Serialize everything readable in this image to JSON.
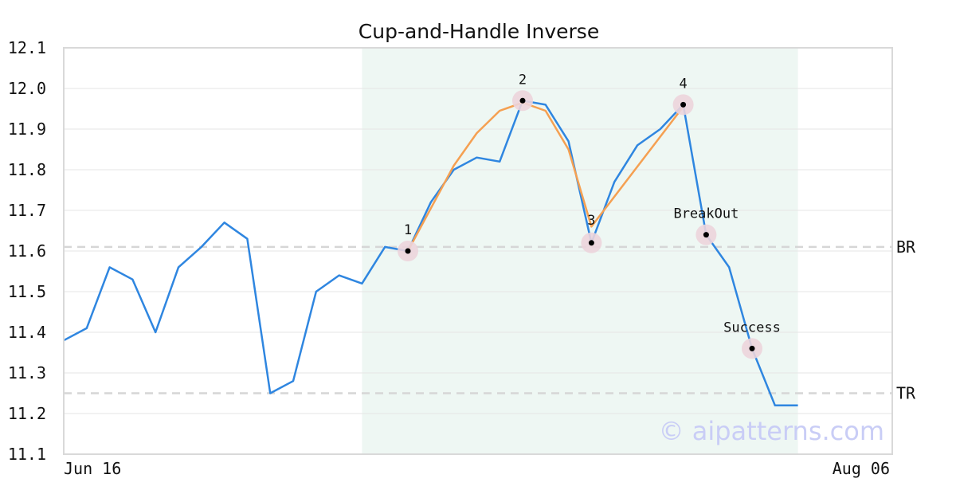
{
  "chart_data": {
    "type": "line",
    "title": "Cup-and-Handle Inverse",
    "xlabel": "",
    "ylabel": "",
    "ylim": [
      11.1,
      12.1
    ],
    "yticks": [
      "12.1",
      "12.0",
      "11.9",
      "11.8",
      "11.7",
      "11.6",
      "11.5",
      "11.4",
      "11.3",
      "11.2",
      "11.1"
    ],
    "xtick_labels": [
      "Jun 16",
      "Aug 06"
    ],
    "grid": true,
    "series": [
      {
        "name": "",
        "color": "#2f86e0",
        "values": [
          11.38,
          11.41,
          11.56,
          11.53,
          11.4,
          11.56,
          11.61,
          11.67,
          11.63,
          11.25,
          11.28,
          11.5,
          11.54,
          11.52,
          11.61,
          11.6,
          11.72,
          11.8,
          11.83,
          11.82,
          11.97,
          11.96,
          11.87,
          11.62,
          11.77,
          11.86,
          11.9,
          11.96,
          11.64,
          11.56,
          11.36,
          11.22,
          11.22
        ]
      }
    ],
    "pattern_line": {
      "color": "#f5a052",
      "points": [
        [
          15,
          11.6
        ],
        [
          17,
          11.81
        ],
        [
          18,
          11.89
        ],
        [
          19,
          11.945
        ],
        [
          20,
          11.965
        ],
        [
          21,
          11.945
        ],
        [
          22,
          11.85
        ],
        [
          23,
          11.66
        ],
        [
          27,
          11.955
        ]
      ]
    },
    "highlight_region": {
      "x_start": 13,
      "x_end": 32,
      "color": "#eef7f3"
    },
    "reference_lines": [
      {
        "label": "BR",
        "value": 11.61
      },
      {
        "label": "TR",
        "value": 11.25
      }
    ],
    "markers": [
      {
        "label": "1",
        "x": 15,
        "y": 11.6,
        "label_pos": "above"
      },
      {
        "label": "2",
        "x": 20,
        "y": 11.97,
        "label_pos": "above"
      },
      {
        "label": "3",
        "x": 23,
        "y": 11.62,
        "label_pos": "on"
      },
      {
        "label": "4",
        "x": 27,
        "y": 11.96,
        "label_pos": "above"
      },
      {
        "label": "BreakOut",
        "x": 28,
        "y": 11.64,
        "label_pos": "above"
      },
      {
        "label": "Success",
        "x": 30,
        "y": 11.36,
        "label_pos": "above"
      }
    ],
    "watermark": "© aipatterns.com"
  }
}
